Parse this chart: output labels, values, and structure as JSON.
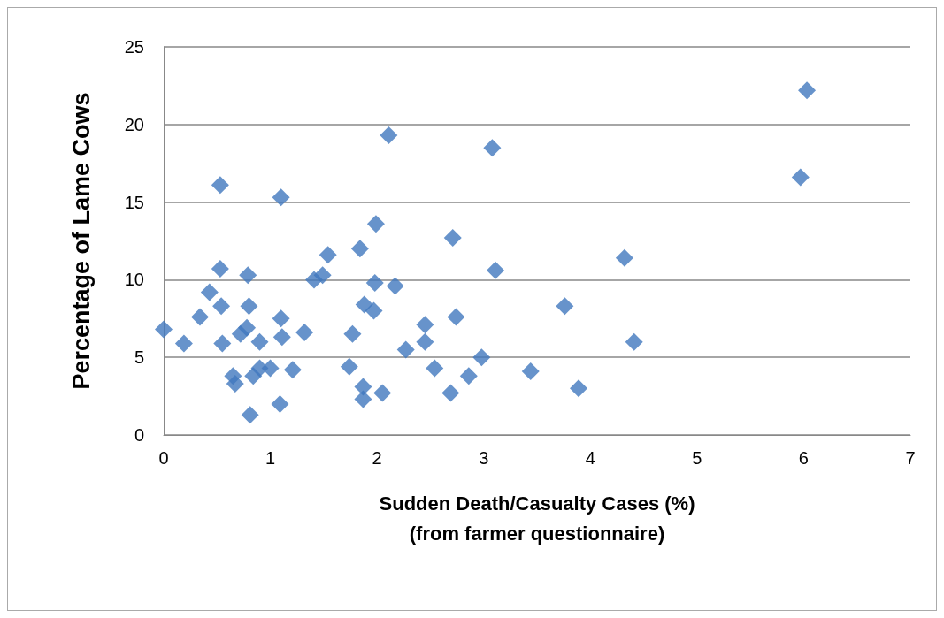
{
  "chart_data": {
    "type": "scatter",
    "xlabel": "Sudden Death/Casualty Cases (%)\n(from farmer questionnaire)",
    "ylabel": "Percentage of Lame Cows",
    "x": [
      0,
      0.19,
      0.34,
      0.43,
      0.53,
      0.53,
      0.54,
      0.55,
      0.65,
      0.67,
      0.72,
      0.78,
      0.79,
      0.8,
      0.81,
      0.84,
      0.9,
      0.9,
      1.0,
      1.09,
      1.1,
      1.1,
      1.11,
      1.21,
      1.32,
      1.41,
      1.49,
      1.54,
      1.74,
      1.77,
      1.84,
      1.87,
      1.87,
      1.88,
      1.97,
      1.98,
      1.99,
      2.05,
      2.11,
      2.17,
      2.27,
      2.45,
      2.45,
      2.54,
      2.69,
      2.71,
      2.74,
      2.86,
      2.98,
      3.08,
      3.11,
      3.44,
      3.76,
      3.89,
      4.32,
      4.41,
      5.97,
      6.03
    ],
    "values": [
      6.8,
      5.9,
      7.6,
      9.2,
      16.1,
      10.7,
      8.3,
      5.9,
      3.8,
      3.3,
      6.5,
      6.9,
      10.3,
      8.3,
      1.3,
      3.8,
      4.3,
      6.0,
      4.3,
      2.0,
      15.3,
      7.5,
      6.3,
      4.2,
      6.6,
      10.0,
      10.3,
      11.6,
      4.4,
      6.5,
      12.0,
      3.1,
      2.3,
      8.4,
      8.0,
      9.8,
      13.6,
      2.7,
      19.3,
      9.6,
      5.5,
      7.1,
      6.0,
      4.3,
      2.7,
      12.7,
      7.6,
      3.8,
      5.0,
      18.5,
      10.6,
      4.1,
      8.3,
      3.0,
      11.4,
      6.0,
      16.6,
      22.2
    ],
    "color": "#4178be",
    "marker": "diamond",
    "xlim": [
      0,
      7
    ],
    "xticks": [
      0,
      1,
      2,
      3,
      4,
      5,
      6,
      7
    ],
    "ylim": [
      0,
      25
    ],
    "yticks": [
      0,
      5,
      10,
      15,
      20,
      25
    ],
    "grid": "y"
  }
}
